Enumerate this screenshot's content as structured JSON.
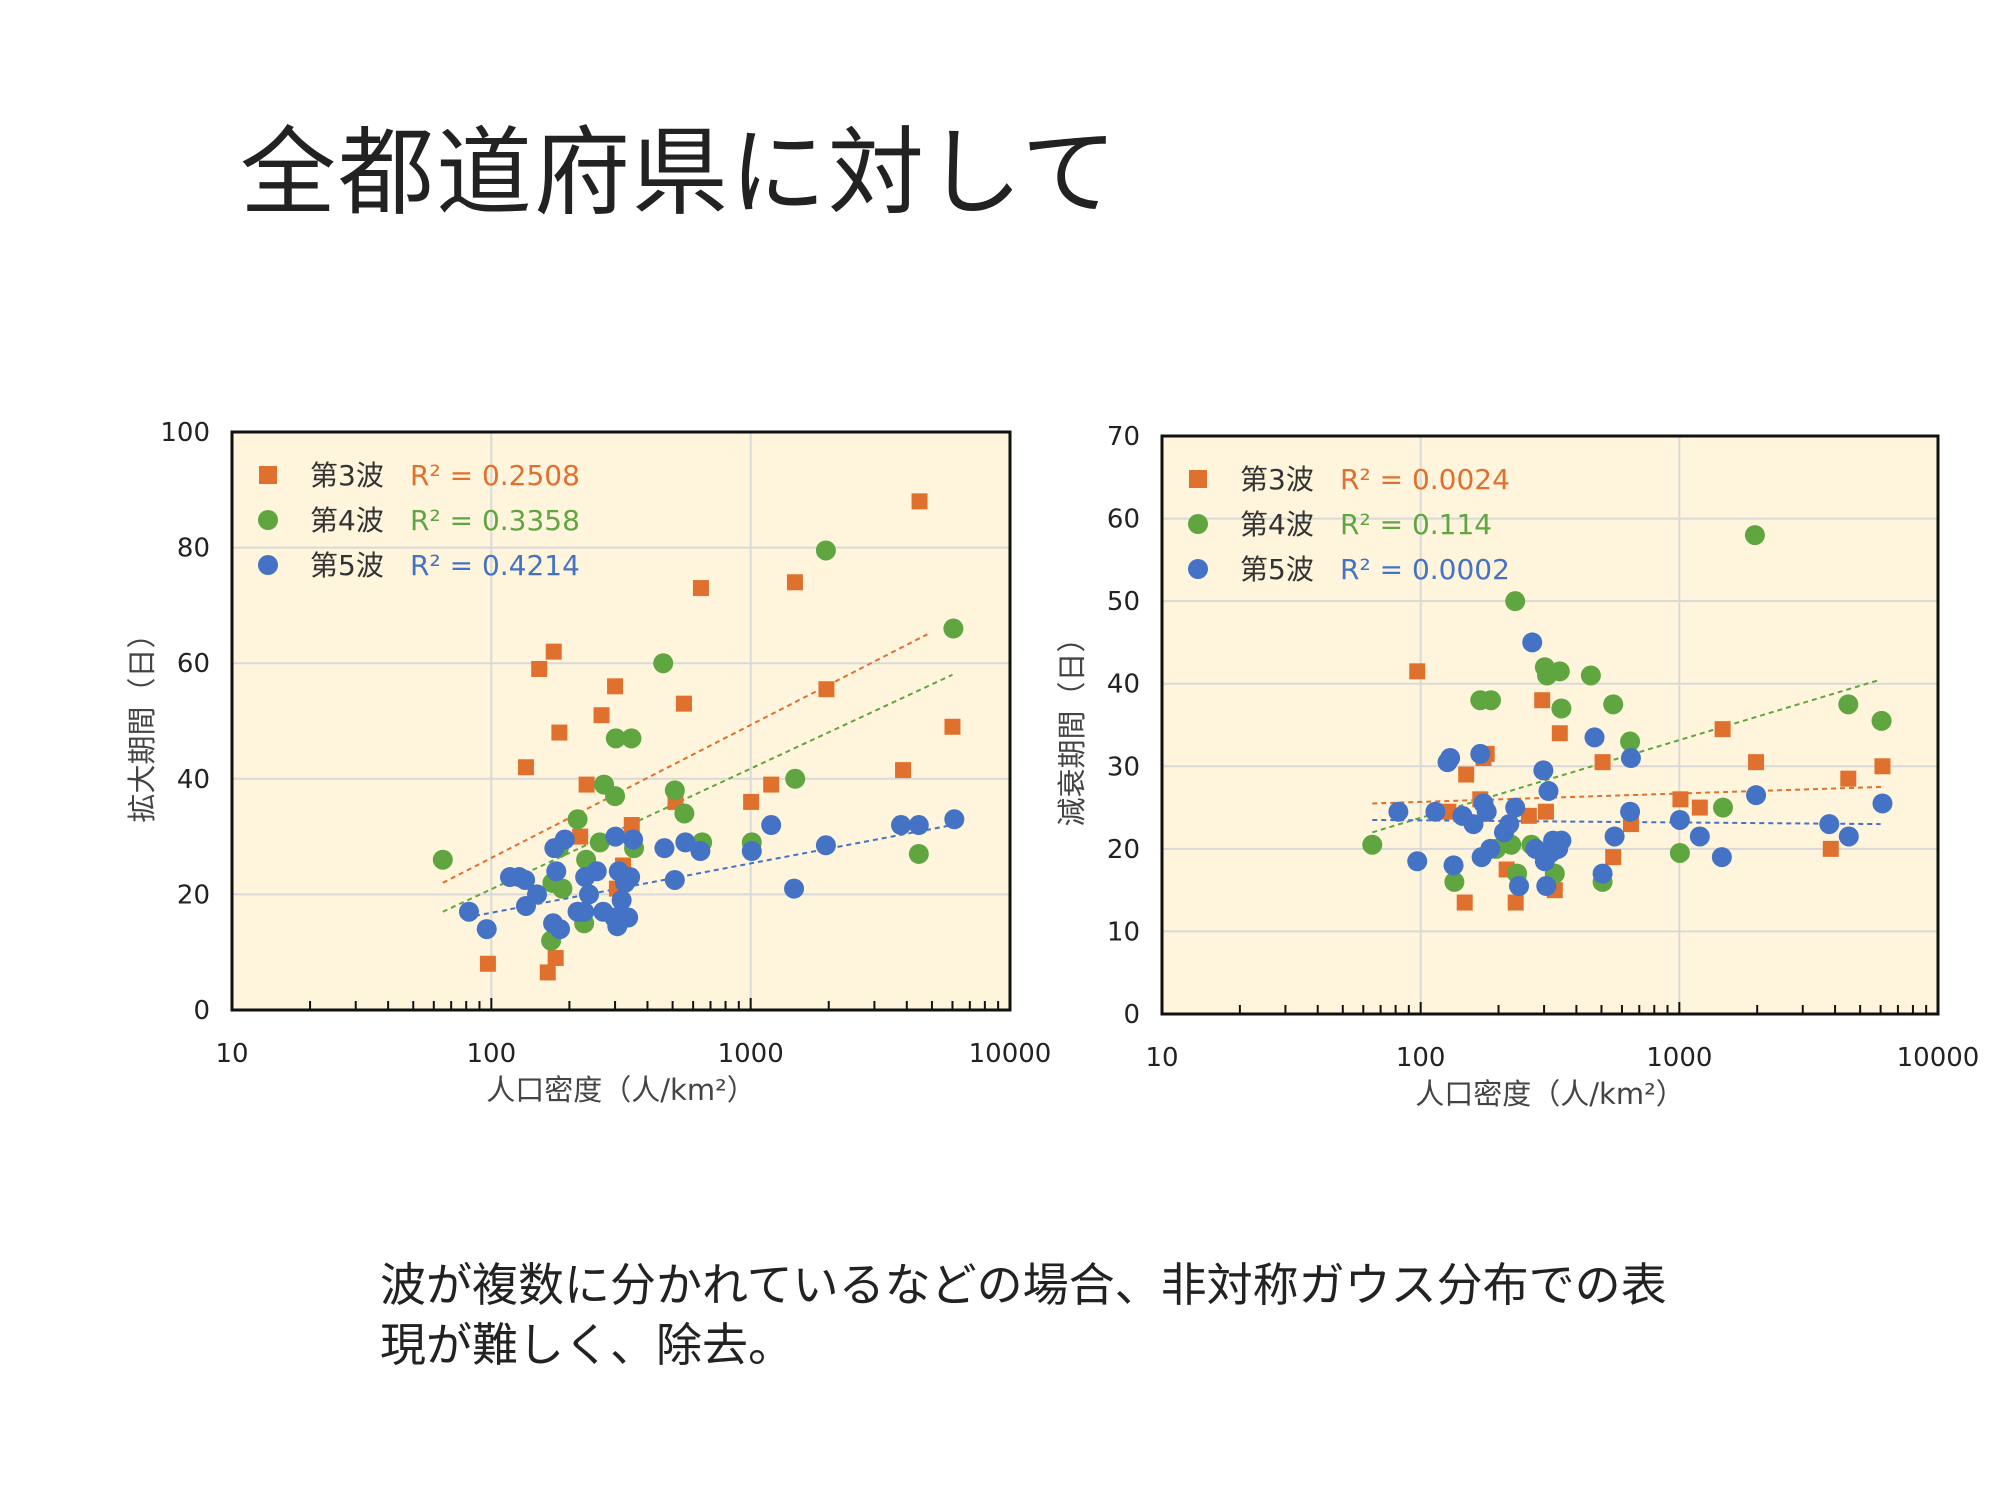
{
  "title": "全都道府県に対して",
  "caption": {
    "line1": "波が複数に分かれているなどの場合、非対称ガウス分布での表",
    "line2": "現が難しく、除去。"
  },
  "colors": {
    "plot_bg": "#FFF5DC",
    "grid": "#D9D9D9",
    "wave3": "#E0702E",
    "wave4": "#5FA640",
    "wave5": "#4472C4"
  },
  "chart_data": [
    {
      "type": "scatter",
      "xscale": "log",
      "xlim": [
        10,
        10000
      ],
      "ylim": [
        0,
        100
      ],
      "xticks": [
        "10",
        "100",
        "1000",
        "10000"
      ],
      "yticks": [
        "0",
        "20",
        "40",
        "60",
        "80",
        "100"
      ],
      "xlabel": "人口密度（人/km²）",
      "ylabel": "拡大期間（日）",
      "grid": true,
      "legend": "top-left",
      "series": [
        {
          "name": "第3波",
          "r2": "R² = 0.2508",
          "marker": "square",
          "color": "#E0702E",
          "trend": [
            [
              65,
              22
            ],
            [
              4800,
              65
            ]
          ],
          "points": [
            [
              97,
              8
            ],
            [
              165,
              6.5
            ],
            [
              177,
              9
            ],
            [
              136,
              42
            ],
            [
              153,
              59
            ],
            [
              174,
              62
            ],
            [
              183,
              48
            ],
            [
              220,
              30
            ],
            [
              233,
              39
            ],
            [
              266,
              51
            ],
            [
              300,
              56
            ],
            [
              305,
              21
            ],
            [
              322,
              25
            ],
            [
              348,
              32
            ],
            [
              513,
              36
            ],
            [
              553,
              53
            ],
            [
              643,
              73
            ],
            [
              1004,
              36
            ],
            [
              1200,
              39
            ],
            [
              1482,
              74
            ],
            [
              1960,
              55.5
            ],
            [
              3870,
              41.5
            ],
            [
              4480,
              88
            ],
            [
              6000,
              49
            ]
          ]
        },
        {
          "name": "第4波",
          "r2": "R² = 0.3358",
          "marker": "circle",
          "color": "#5FA640",
          "trend": [
            [
              65,
              17
            ],
            [
              6000,
              58
            ]
          ],
          "points": [
            [
              65,
              26
            ],
            [
              170,
              12
            ],
            [
              172,
              22
            ],
            [
              182,
              28
            ],
            [
              188,
              21
            ],
            [
              215,
              33
            ],
            [
              228,
              15
            ],
            [
              232,
              26
            ],
            [
              262,
              29
            ],
            [
              272,
              39
            ],
            [
              300,
              37
            ],
            [
              302,
              47
            ],
            [
              347,
              47
            ],
            [
              355,
              28
            ],
            [
              460,
              60
            ],
            [
              510,
              38
            ],
            [
              555,
              34
            ],
            [
              650,
              29
            ],
            [
              1010,
              29
            ],
            [
              1485,
              40
            ],
            [
              1950,
              79.5
            ],
            [
              4450,
              27
            ],
            [
              6050,
              66
            ]
          ]
        },
        {
          "name": "第5波",
          "r2": "R² = 0.4214",
          "marker": "circle",
          "color": "#4472C4",
          "trend": [
            [
              80,
              16
            ],
            [
              6000,
              32
            ]
          ],
          "points": [
            [
              82,
              17
            ],
            [
              96,
              14
            ],
            [
              118,
              23
            ],
            [
              128,
              23
            ],
            [
              135,
              22.5
            ],
            [
              136,
              18
            ],
            [
              150,
              20
            ],
            [
              173,
              15
            ],
            [
              175,
              28
            ],
            [
              178,
              24
            ],
            [
              184,
              14
            ],
            [
              192,
              29.5
            ],
            [
              215,
              17
            ],
            [
              228,
              17
            ],
            [
              230,
              23
            ],
            [
              238,
              20
            ],
            [
              255,
              24
            ],
            [
              270,
              17
            ],
            [
              298,
              16
            ],
            [
              301,
              30
            ],
            [
              306,
              14.5
            ],
            [
              310,
              24
            ],
            [
              318,
              19
            ],
            [
              328,
              22
            ],
            [
              337,
              16
            ],
            [
              343,
              23
            ],
            [
              352,
              29.5
            ],
            [
              465,
              28
            ],
            [
              510,
              22.5
            ],
            [
              560,
              29
            ],
            [
              640,
              27.5
            ],
            [
              1010,
              27.5
            ],
            [
              1200,
              32
            ],
            [
              1470,
              21
            ],
            [
              1950,
              28.5
            ],
            [
              3800,
              32
            ],
            [
              4450,
              32
            ],
            [
              6100,
              33
            ]
          ]
        }
      ]
    },
    {
      "type": "scatter",
      "xscale": "log",
      "xlim": [
        10,
        10000
      ],
      "ylim": [
        0,
        70
      ],
      "xticks": [
        "10",
        "100",
        "1000",
        "10000"
      ],
      "yticks": [
        "0",
        "10",
        "20",
        "30",
        "40",
        "50",
        "60",
        "70"
      ],
      "xlabel": "人口密度（人/km²）",
      "ylabel": "減衰期間（日）",
      "grid": true,
      "legend": "top-left",
      "series": [
        {
          "name": "第3波",
          "r2": "R² = 0.0024",
          "marker": "square",
          "color": "#E0702E",
          "trend": [
            [
              65,
              25.5
            ],
            [
              6100,
              27.5
            ]
          ],
          "points": [
            [
              97,
              41.5
            ],
            [
              128,
              24.5
            ],
            [
              148,
              13.5
            ],
            [
              150,
              29
            ],
            [
              170,
              26
            ],
            [
              175,
              31
            ],
            [
              180,
              31.5
            ],
            [
              215,
              17.5
            ],
            [
              233,
              13.5
            ],
            [
              262,
              24
            ],
            [
              295,
              38
            ],
            [
              305,
              24.5
            ],
            [
              330,
              15
            ],
            [
              345,
              34
            ],
            [
              505,
              30.5
            ],
            [
              555,
              19
            ],
            [
              650,
              23
            ],
            [
              1010,
              26
            ],
            [
              1200,
              25
            ],
            [
              1470,
              34.5
            ],
            [
              1980,
              30.5
            ],
            [
              3850,
              20
            ],
            [
              4500,
              28.5
            ],
            [
              6100,
              30
            ]
          ]
        },
        {
          "name": "第4波",
          "r2": "R² = 0.114",
          "marker": "circle",
          "color": "#5FA640",
          "trend": [
            [
              65,
              22
            ],
            [
              6000,
              40.5
            ]
          ],
          "points": [
            [
              65,
              20.5
            ],
            [
              135,
              16
            ],
            [
              170,
              38
            ],
            [
              187,
              38
            ],
            [
              196,
              20
            ],
            [
              224,
              20.5
            ],
            [
              232,
              50
            ],
            [
              236,
              17
            ],
            [
              268,
              20.5
            ],
            [
              302,
              42
            ],
            [
              308,
              41
            ],
            [
              330,
              17
            ],
            [
              345,
              41.5
            ],
            [
              350,
              37
            ],
            [
              455,
              41
            ],
            [
              505,
              16
            ],
            [
              555,
              37.5
            ],
            [
              645,
              33
            ],
            [
              1005,
              19.5
            ],
            [
              1475,
              25
            ],
            [
              1960,
              58
            ],
            [
              4500,
              37.5
            ],
            [
              6050,
              35.5
            ]
          ]
        },
        {
          "name": "第5波",
          "r2": "R² = 0.0002",
          "marker": "circle",
          "color": "#4472C4",
          "trend": [
            [
              65,
              23.5
            ],
            [
              6000,
              23
            ]
          ],
          "points": [
            [
              82,
              24.5
            ],
            [
              97,
              18.5
            ],
            [
              114,
              24.5
            ],
            [
              127,
              30.5
            ],
            [
              130,
              31
            ],
            [
              134,
              18
            ],
            [
              145,
              24
            ],
            [
              160,
              23
            ],
            [
              170,
              31.5
            ],
            [
              172,
              19
            ],
            [
              175,
              25.5
            ],
            [
              180,
              24.5
            ],
            [
              186,
              20
            ],
            [
              210,
              22
            ],
            [
              220,
              23
            ],
            [
              232,
              25
            ],
            [
              240,
              15.5
            ],
            [
              270,
              45
            ],
            [
              278,
              20
            ],
            [
              298,
              29.5
            ],
            [
              302,
              18.5
            ],
            [
              306,
              15.5
            ],
            [
              312,
              27
            ],
            [
              318,
              19.5
            ],
            [
              325,
              21
            ],
            [
              330,
              20.5
            ],
            [
              340,
              20
            ],
            [
              350,
              21
            ],
            [
              470,
              33.5
            ],
            [
              505,
              17
            ],
            [
              562,
              21.5
            ],
            [
              645,
              24.5
            ],
            [
              650,
              31
            ],
            [
              1005,
              23.5
            ],
            [
              1200,
              21.5
            ],
            [
              1460,
              19
            ],
            [
              1980,
              26.5
            ],
            [
              3800,
              23
            ],
            [
              4520,
              21.5
            ],
            [
              6100,
              25.5
            ]
          ]
        }
      ]
    }
  ]
}
